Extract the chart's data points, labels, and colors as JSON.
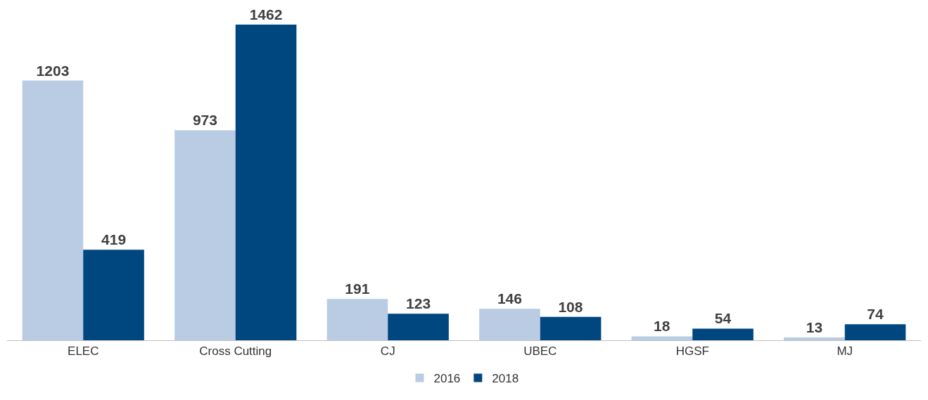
{
  "chart_data": {
    "type": "bar",
    "categories": [
      "ELEC",
      "Cross Cutting",
      "CJ",
      "UBEC",
      "HGSF",
      "MJ"
    ],
    "series": [
      {
        "name": "2016",
        "color": "#b9cce4",
        "values": [
          1203,
          973,
          191,
          146,
          18,
          13
        ]
      },
      {
        "name": "2018",
        "color": "#00467f",
        "values": [
          419,
          1462,
          123,
          108,
          54,
          74
        ]
      }
    ],
    "data_labels": true,
    "legend": "bottom"
  }
}
